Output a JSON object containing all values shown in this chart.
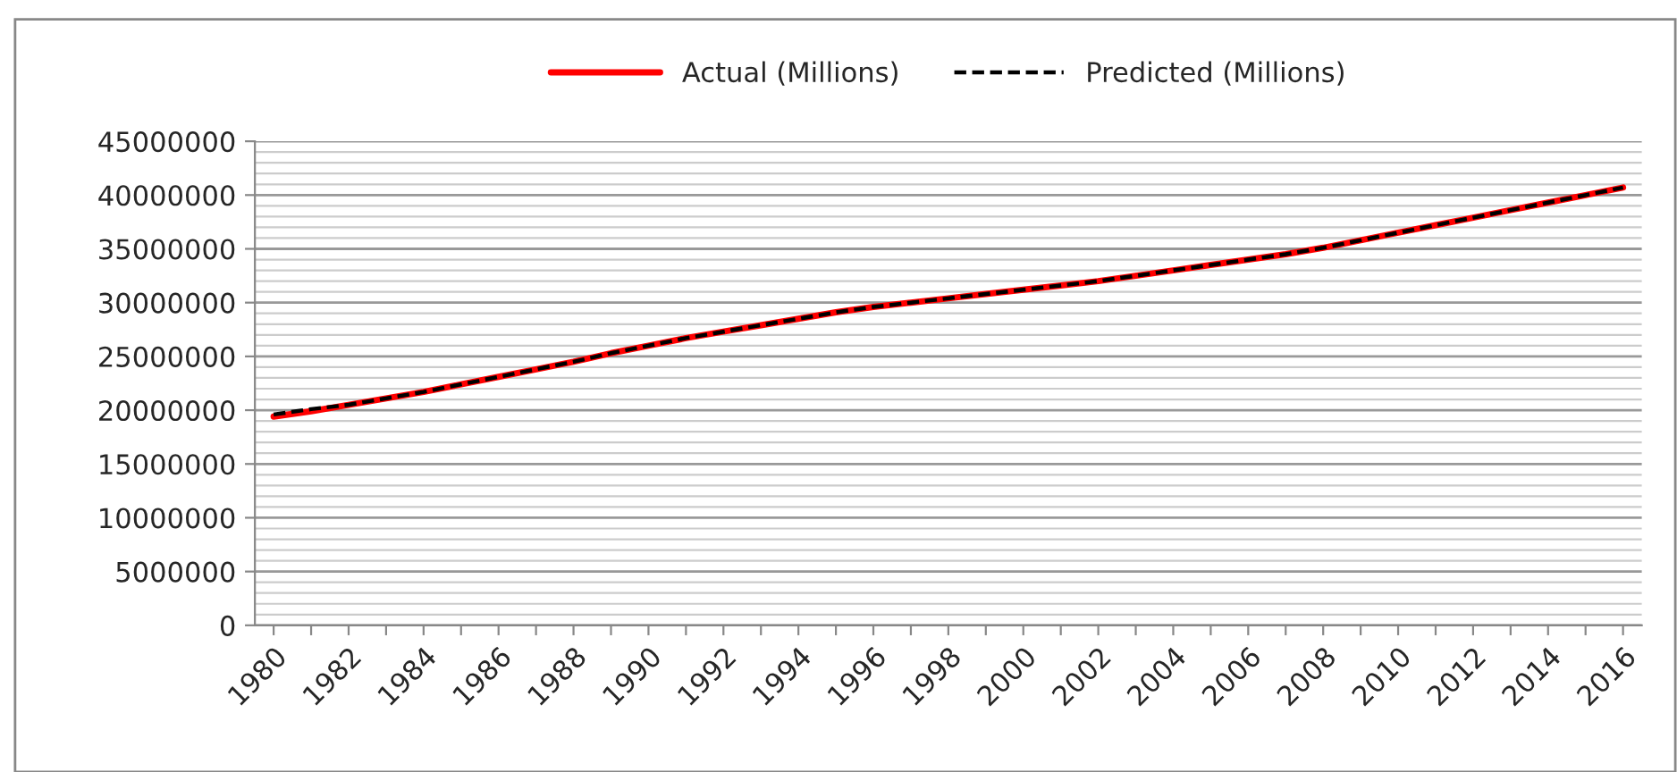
{
  "chart_data": {
    "type": "line",
    "categories": [
      "1980",
      null,
      "1982",
      null,
      "1984",
      null,
      "1986",
      null,
      "1988",
      null,
      "1990",
      null,
      "1992",
      null,
      "1994",
      null,
      "1996",
      null,
      "1998",
      null,
      "2000",
      null,
      "2002",
      null,
      "2004",
      null,
      "2006",
      null,
      "2008",
      null,
      "2010",
      null,
      "2012",
      null,
      "2014",
      null,
      "2016"
    ],
    "series": [
      {
        "name": "Actual (Millions)",
        "color": "#ff0000",
        "line_style": "solid",
        "values": [
          19400000,
          19900000,
          20500000,
          21100000,
          21700000,
          22400000,
          23100000,
          23800000,
          24500000,
          25300000,
          26000000,
          26700000,
          27300000,
          27900000,
          28500000,
          29100000,
          29600000,
          30000000,
          30400000,
          30800000,
          31200000,
          31600000,
          32000000,
          32500000,
          33000000,
          33500000,
          34000000,
          34500000,
          35100000,
          35800000,
          36500000,
          37200000,
          37900000,
          38600000,
          39300000,
          40000000,
          40700000
        ]
      },
      {
        "name": "Predicted (Millions)",
        "color": "#000000",
        "line_style": "dashed",
        "values": [
          19600000,
          20100000,
          20500000,
          21100000,
          21700000,
          22400000,
          23100000,
          23800000,
          24500000,
          25300000,
          26000000,
          26700000,
          27300000,
          27900000,
          28500000,
          29100000,
          29600000,
          30000000,
          30400000,
          30800000,
          31200000,
          31600000,
          32000000,
          32500000,
          33000000,
          33500000,
          34000000,
          34500000,
          35100000,
          35800000,
          36500000,
          37200000,
          37900000,
          38600000,
          39300000,
          40000000,
          40700000
        ]
      }
    ],
    "ylim": [
      0,
      45000000
    ],
    "yticks": [
      0,
      5000000,
      10000000,
      15000000,
      20000000,
      25000000,
      30000000,
      35000000,
      40000000,
      45000000
    ],
    "grid": "y",
    "legend": "top",
    "marker": "none"
  }
}
